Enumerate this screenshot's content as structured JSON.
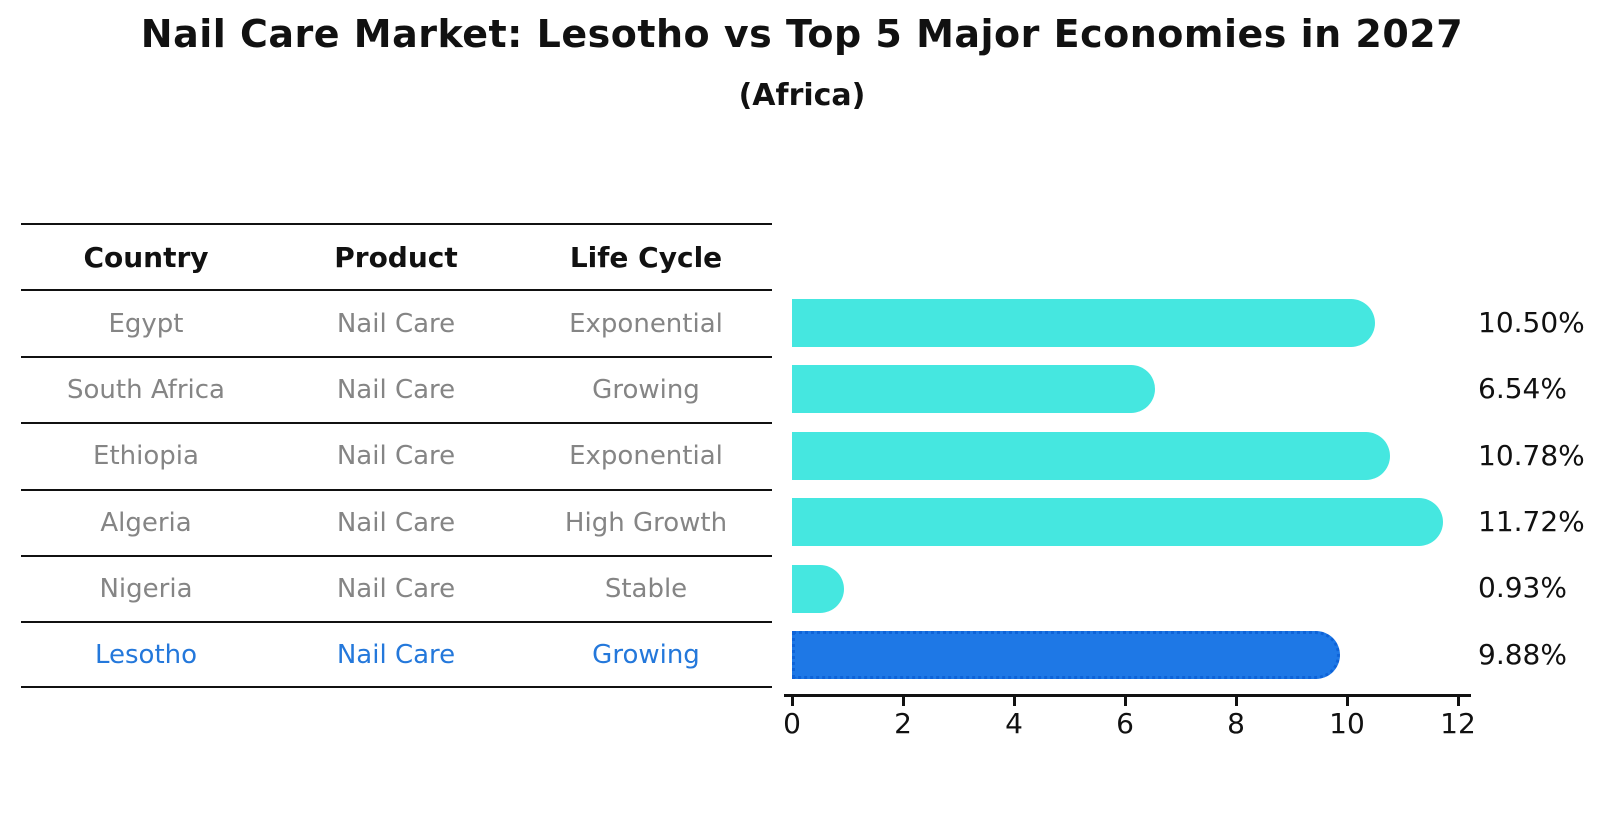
{
  "header": {
    "title": "Nail Care Market: Lesotho vs Top 5 Major Economies in 2027",
    "subtitle": "(Africa)"
  },
  "table": {
    "headers": {
      "country": "Country",
      "product": "Product",
      "life_cycle": "Life Cycle"
    },
    "rows": [
      {
        "country": "Egypt",
        "product": "Nail Care",
        "life_cycle": "Exponential"
      },
      {
        "country": "South Africa",
        "product": "Nail Care",
        "life_cycle": "Growing"
      },
      {
        "country": "Ethiopia",
        "product": "Nail Care",
        "life_cycle": "Exponential"
      },
      {
        "country": "Algeria",
        "product": "Nail Care",
        "life_cycle": "High Growth"
      },
      {
        "country": "Nigeria",
        "product": "Nail Care",
        "life_cycle": "Stable"
      },
      {
        "country": "Lesotho",
        "product": "Nail Care",
        "life_cycle": "Growing"
      }
    ],
    "highlight_row": "Lesotho"
  },
  "chart_data": {
    "type": "bar",
    "orientation": "horizontal",
    "title": "Nail Care Market: Lesotho vs Top 5 Major Economies in 2027",
    "subtitle": "(Africa)",
    "categories": [
      "Egypt",
      "South Africa",
      "Ethiopia",
      "Algeria",
      "Nigeria",
      "Lesotho"
    ],
    "values": [
      10.5,
      6.54,
      10.78,
      11.72,
      0.93,
      9.88
    ],
    "value_labels": [
      "10.50%",
      "6.54%",
      "10.78%",
      "11.72%",
      "0.93%",
      "9.88%"
    ],
    "unit": "percent CAGR",
    "xlim": [
      0,
      12
    ],
    "x_ticks": [
      0,
      2,
      4,
      6,
      8,
      10,
      12
    ],
    "grid": false,
    "legend": false,
    "bar_color": "#45E7E0",
    "highlight_category": "Lesotho",
    "highlight_color": "#1E78E6",
    "highlight_border_color": "#0E63D8"
  },
  "colors": {
    "background": "#ffffff",
    "text": "#111111",
    "muted_text": "#858585",
    "rule": "#111111",
    "highlight_text": "#2478DB"
  }
}
